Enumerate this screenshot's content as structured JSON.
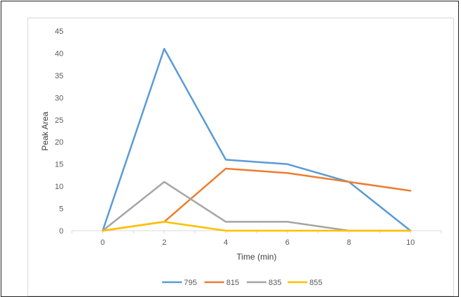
{
  "chart_data": {
    "type": "line",
    "title": "",
    "xlabel": "Time (min)",
    "ylabel": "Peak Area",
    "x": [
      0,
      2,
      4,
      6,
      8,
      10
    ],
    "xlim": [
      -1,
      11
    ],
    "ylim": [
      0,
      45
    ],
    "yticks": [
      0,
      5,
      10,
      15,
      20,
      25,
      30,
      35,
      40,
      45
    ],
    "xticks": [
      0,
      2,
      4,
      6,
      8,
      10
    ],
    "grid": false,
    "legend_position": "bottom",
    "series": [
      {
        "name": "795",
        "color": "#5b9bd5",
        "values": [
          0,
          41,
          16,
          15,
          11,
          0
        ]
      },
      {
        "name": "815",
        "color": "#ed7d31",
        "values": [
          0,
          2,
          14,
          13,
          11,
          9
        ]
      },
      {
        "name": "835",
        "color": "#a5a5a5",
        "values": [
          0,
          11,
          2,
          2,
          0,
          0
        ]
      },
      {
        "name": "855",
        "color": "#ffc000",
        "values": [
          0,
          2,
          0,
          0,
          0,
          0
        ]
      }
    ]
  }
}
